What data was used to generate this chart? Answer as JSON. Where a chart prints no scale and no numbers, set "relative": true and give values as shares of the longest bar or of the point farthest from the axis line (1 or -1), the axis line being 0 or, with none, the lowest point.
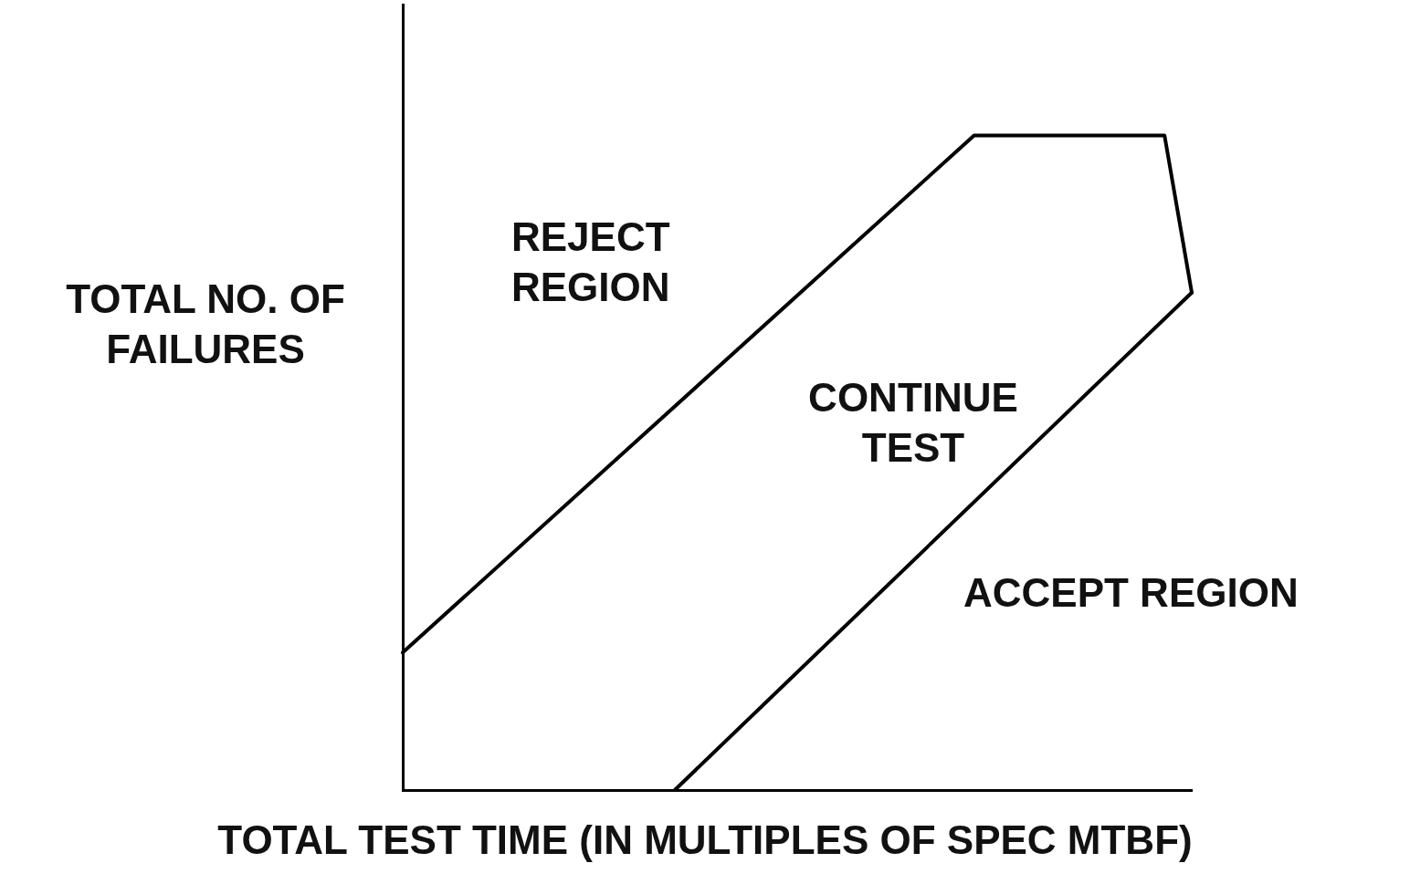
{
  "chart_data": {
    "type": "line",
    "relative": true,
    "xlabel": "TOTAL TEST TIME (IN MULTIPLES OF SPEC MTBF)",
    "ylabel": "TOTAL NO. OF FAILURES",
    "annotations": [
      "REJECT REGION",
      "CONTINUE TEST",
      "ACCEPT REGION"
    ],
    "categories": [
      null,
      null,
      null,
      null,
      null,
      null,
      null,
      null,
      null,
      null,
      null,
      null,
      null,
      null,
      null,
      null,
      null,
      null,
      null,
      null,
      null,
      null,
      null,
      null,
      null,
      null,
      null,
      null,
      null,
      null
    ],
    "series": [
      {
        "color": "#000000",
        "values": [
          0.21,
          null,
          null,
          null,
          null,
          null,
          null,
          null,
          null,
          null,
          null,
          null,
          null,
          null,
          null,
          null,
          null,
          null,
          null,
          null,
          null,
          1,
          null,
          null,
          null,
          null,
          null,
          null,
          1,
          0.76
        ]
      },
      {
        "color": "#000000",
        "values": [
          null,
          null,
          null,
          null,
          null,
          null,
          null,
          null,
          null,
          null,
          0,
          null,
          null,
          null,
          null,
          null,
          null,
          null,
          null,
          null,
          null,
          null,
          null,
          null,
          null,
          null,
          null,
          null,
          null,
          0.76
        ]
      }
    ],
    "grid": false,
    "legend": false,
    "marker": "none",
    "line_style": "solid"
  }
}
